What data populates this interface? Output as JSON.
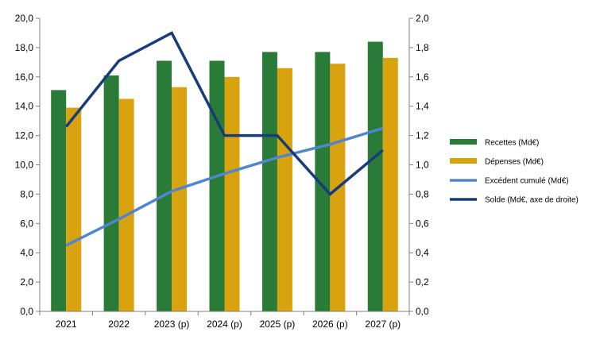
{
  "chart_data": {
    "type": "bar",
    "categories": [
      "2021",
      "2022",
      "2023 (p)",
      "2024 (p)",
      "2025 (p)",
      "2026 (p)",
      "2027 (p)"
    ],
    "series": [
      {
        "name": "Recettes (Md€)",
        "type": "bar",
        "axis": "left",
        "color": "#2a7a38",
        "values": [
          15.1,
          16.1,
          17.1,
          17.1,
          17.7,
          17.7,
          18.4
        ]
      },
      {
        "name": "Dépenses  (Md€)",
        "type": "bar",
        "axis": "left",
        "color": "#d9a30f",
        "values": [
          13.9,
          14.5,
          15.3,
          16.0,
          16.6,
          16.9,
          17.3
        ]
      },
      {
        "name": "Excédent cumulé (Md€)",
        "type": "line",
        "axis": "left",
        "color": "#4f86cf",
        "values": [
          4.5,
          6.3,
          8.2,
          9.4,
          10.5,
          11.4,
          12.5
        ]
      },
      {
        "name": "Solde (Md€, axe de droite)",
        "type": "line",
        "axis": "right",
        "color": "#163d7a",
        "values": [
          1.26,
          1.71,
          1.9,
          1.2,
          1.2,
          0.8,
          1.1
        ]
      }
    ],
    "y_left": {
      "min": 0,
      "max": 20,
      "step": 2,
      "tick_labels": [
        "0,0",
        "2,0",
        "4,0",
        "6,0",
        "8,0",
        "10,0",
        "12,0",
        "14,0",
        "16,0",
        "18,0",
        "20,0"
      ]
    },
    "y_right": {
      "min": 0,
      "max": 2,
      "step": 0.2,
      "tick_labels": [
        "0,0",
        "0,2",
        "0,4",
        "0,6",
        "0,8",
        "1,0",
        "1,2",
        "1,4",
        "1,6",
        "1,8",
        "2,0"
      ]
    },
    "grid": false,
    "legend_position": "right"
  }
}
